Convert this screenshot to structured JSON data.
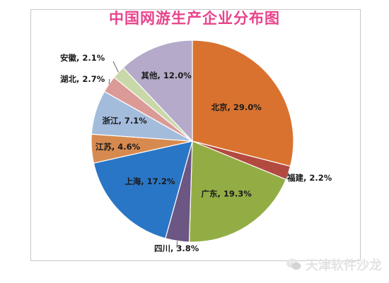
{
  "chart_data": {
    "type": "pie",
    "title": "中国网游生产企业分布图",
    "slices": [
      {
        "label": "北京",
        "value": 29.0,
        "color": "#d9722f",
        "label_text": "北京, 29.0%"
      },
      {
        "label": "福建",
        "value": 2.2,
        "color": "#b34a40",
        "label_text": "福建, 2.2%"
      },
      {
        "label": "广东",
        "value": 19.3,
        "color": "#93ad45",
        "label_text": "广东, 19.3%"
      },
      {
        "label": "四川",
        "value": 3.8,
        "color": "#6c5684",
        "label_text": "四川, 3.8%"
      },
      {
        "label": "上海",
        "value": 17.2,
        "color": "#2a76c6",
        "label_text": "上海, 17.2%"
      },
      {
        "label": "江苏",
        "value": 4.6,
        "color": "#d78a4f",
        "label_text": "江苏, 4.6%"
      },
      {
        "label": "浙江",
        "value": 7.1,
        "color": "#a4bcdc",
        "label_text": "浙江, 7.1%"
      },
      {
        "label": "湖北",
        "value": 2.7,
        "color": "#dc9a97",
        "label_text": "湖北, 2.7%"
      },
      {
        "label": "安徽",
        "value": 2.1,
        "color": "#c9d8a8",
        "label_text": "安徽, 2.1%"
      },
      {
        "label": "其他",
        "value": 12.0,
        "color": "#b5aac9",
        "label_text": "其他, 12.0%"
      }
    ]
  },
  "watermark": {
    "text": "天津软件沙龙",
    "icon": "wechat-icon"
  }
}
